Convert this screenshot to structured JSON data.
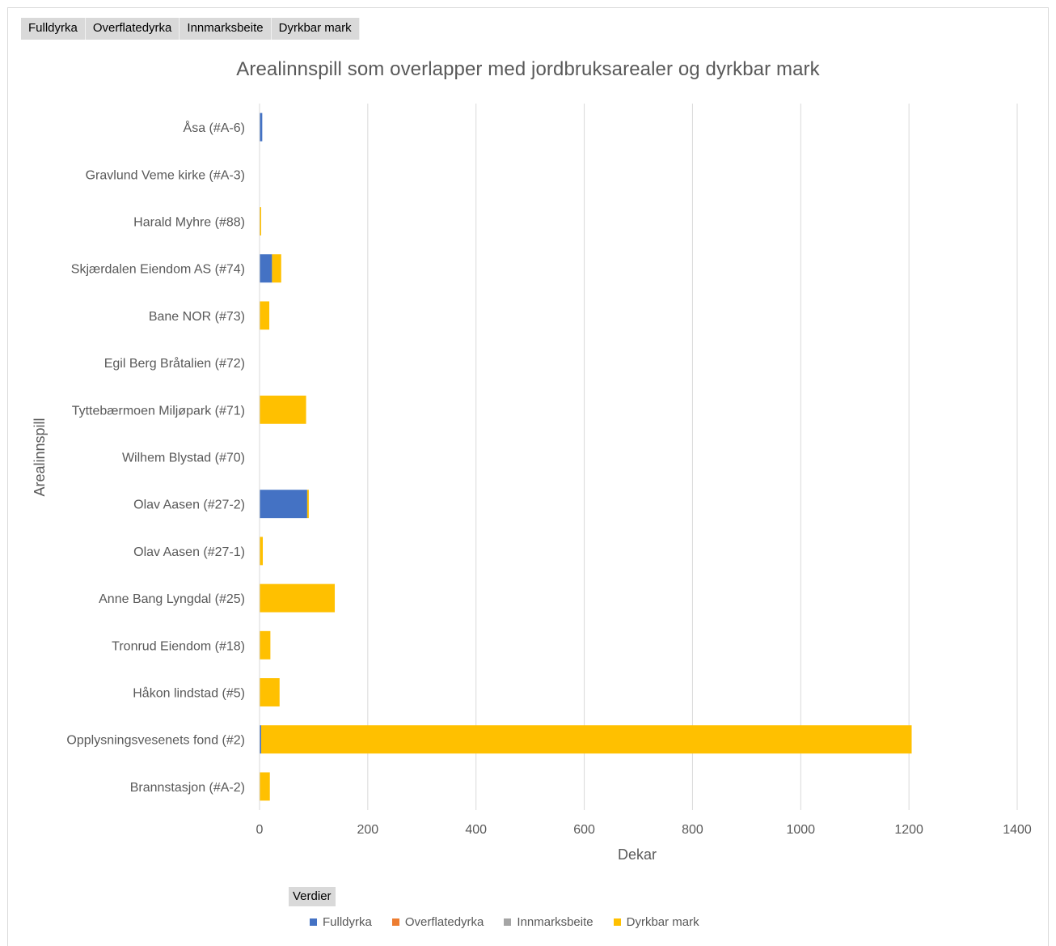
{
  "field_buttons": [
    "Fulldyrka",
    "Overflatedyrka",
    "Innmarksbeite",
    "Dyrkbar mark"
  ],
  "legend_button": "Verdier",
  "chart_data": {
    "type": "bar",
    "orientation": "horizontal",
    "stacked": true,
    "title": "Arealinnspill som overlapper med jordbruksarealer og dyrkbar mark",
    "xlabel": "Dekar",
    "ylabel": "Arealinnspill",
    "xlim": [
      0,
      1400
    ],
    "x_ticks": [
      "0",
      "200",
      "400",
      "600",
      "800",
      "1000",
      "1200",
      "1400"
    ],
    "grid": true,
    "legend_position": "bottom",
    "categories": [
      "Åsa (#A-6)",
      "Gravlund Veme kirke (#A-3)",
      "Harald Myhre (#88)",
      "Skjærdalen Eiendom AS (#74)",
      "Bane NOR (#73)",
      "Egil Berg Bråtalien (#72)",
      "Tyttebærmoen Miljøpark (#71)",
      "Wilhem Blystad (#70)",
      "Olav Aasen (#27-2)",
      "Olav Aasen (#27-1)",
      "Anne Bang Lyngdal (#25)",
      "Tronrud Eiendom (#18)",
      "Håkon lindstad (#5)",
      "Opplysningsvesenets fond (#2)",
      "Brannstasjon (#A-2)"
    ],
    "series": [
      {
        "name": "Fulldyrka",
        "color": "#4472c4",
        "values": [
          5,
          0,
          0,
          23,
          0,
          0,
          0,
          0,
          88,
          0,
          0,
          0,
          0,
          3,
          0
        ]
      },
      {
        "name": "Overflatedyrka",
        "color": "#ed7d31",
        "values": [
          0,
          0,
          0,
          0,
          0,
          0,
          0,
          0,
          0,
          0,
          0,
          0,
          0,
          0,
          0
        ]
      },
      {
        "name": "Innmarksbeite",
        "color": "#a5a5a5",
        "values": [
          0,
          0,
          0,
          0,
          0,
          0,
          0,
          0,
          0,
          0,
          0,
          0,
          0,
          0,
          0
        ]
      },
      {
        "name": "Dyrkbar mark",
        "color": "#ffc000",
        "values": [
          0,
          0,
          3,
          17,
          18,
          0,
          86,
          0,
          3,
          6,
          139,
          20,
          37,
          1202,
          19
        ]
      }
    ]
  }
}
